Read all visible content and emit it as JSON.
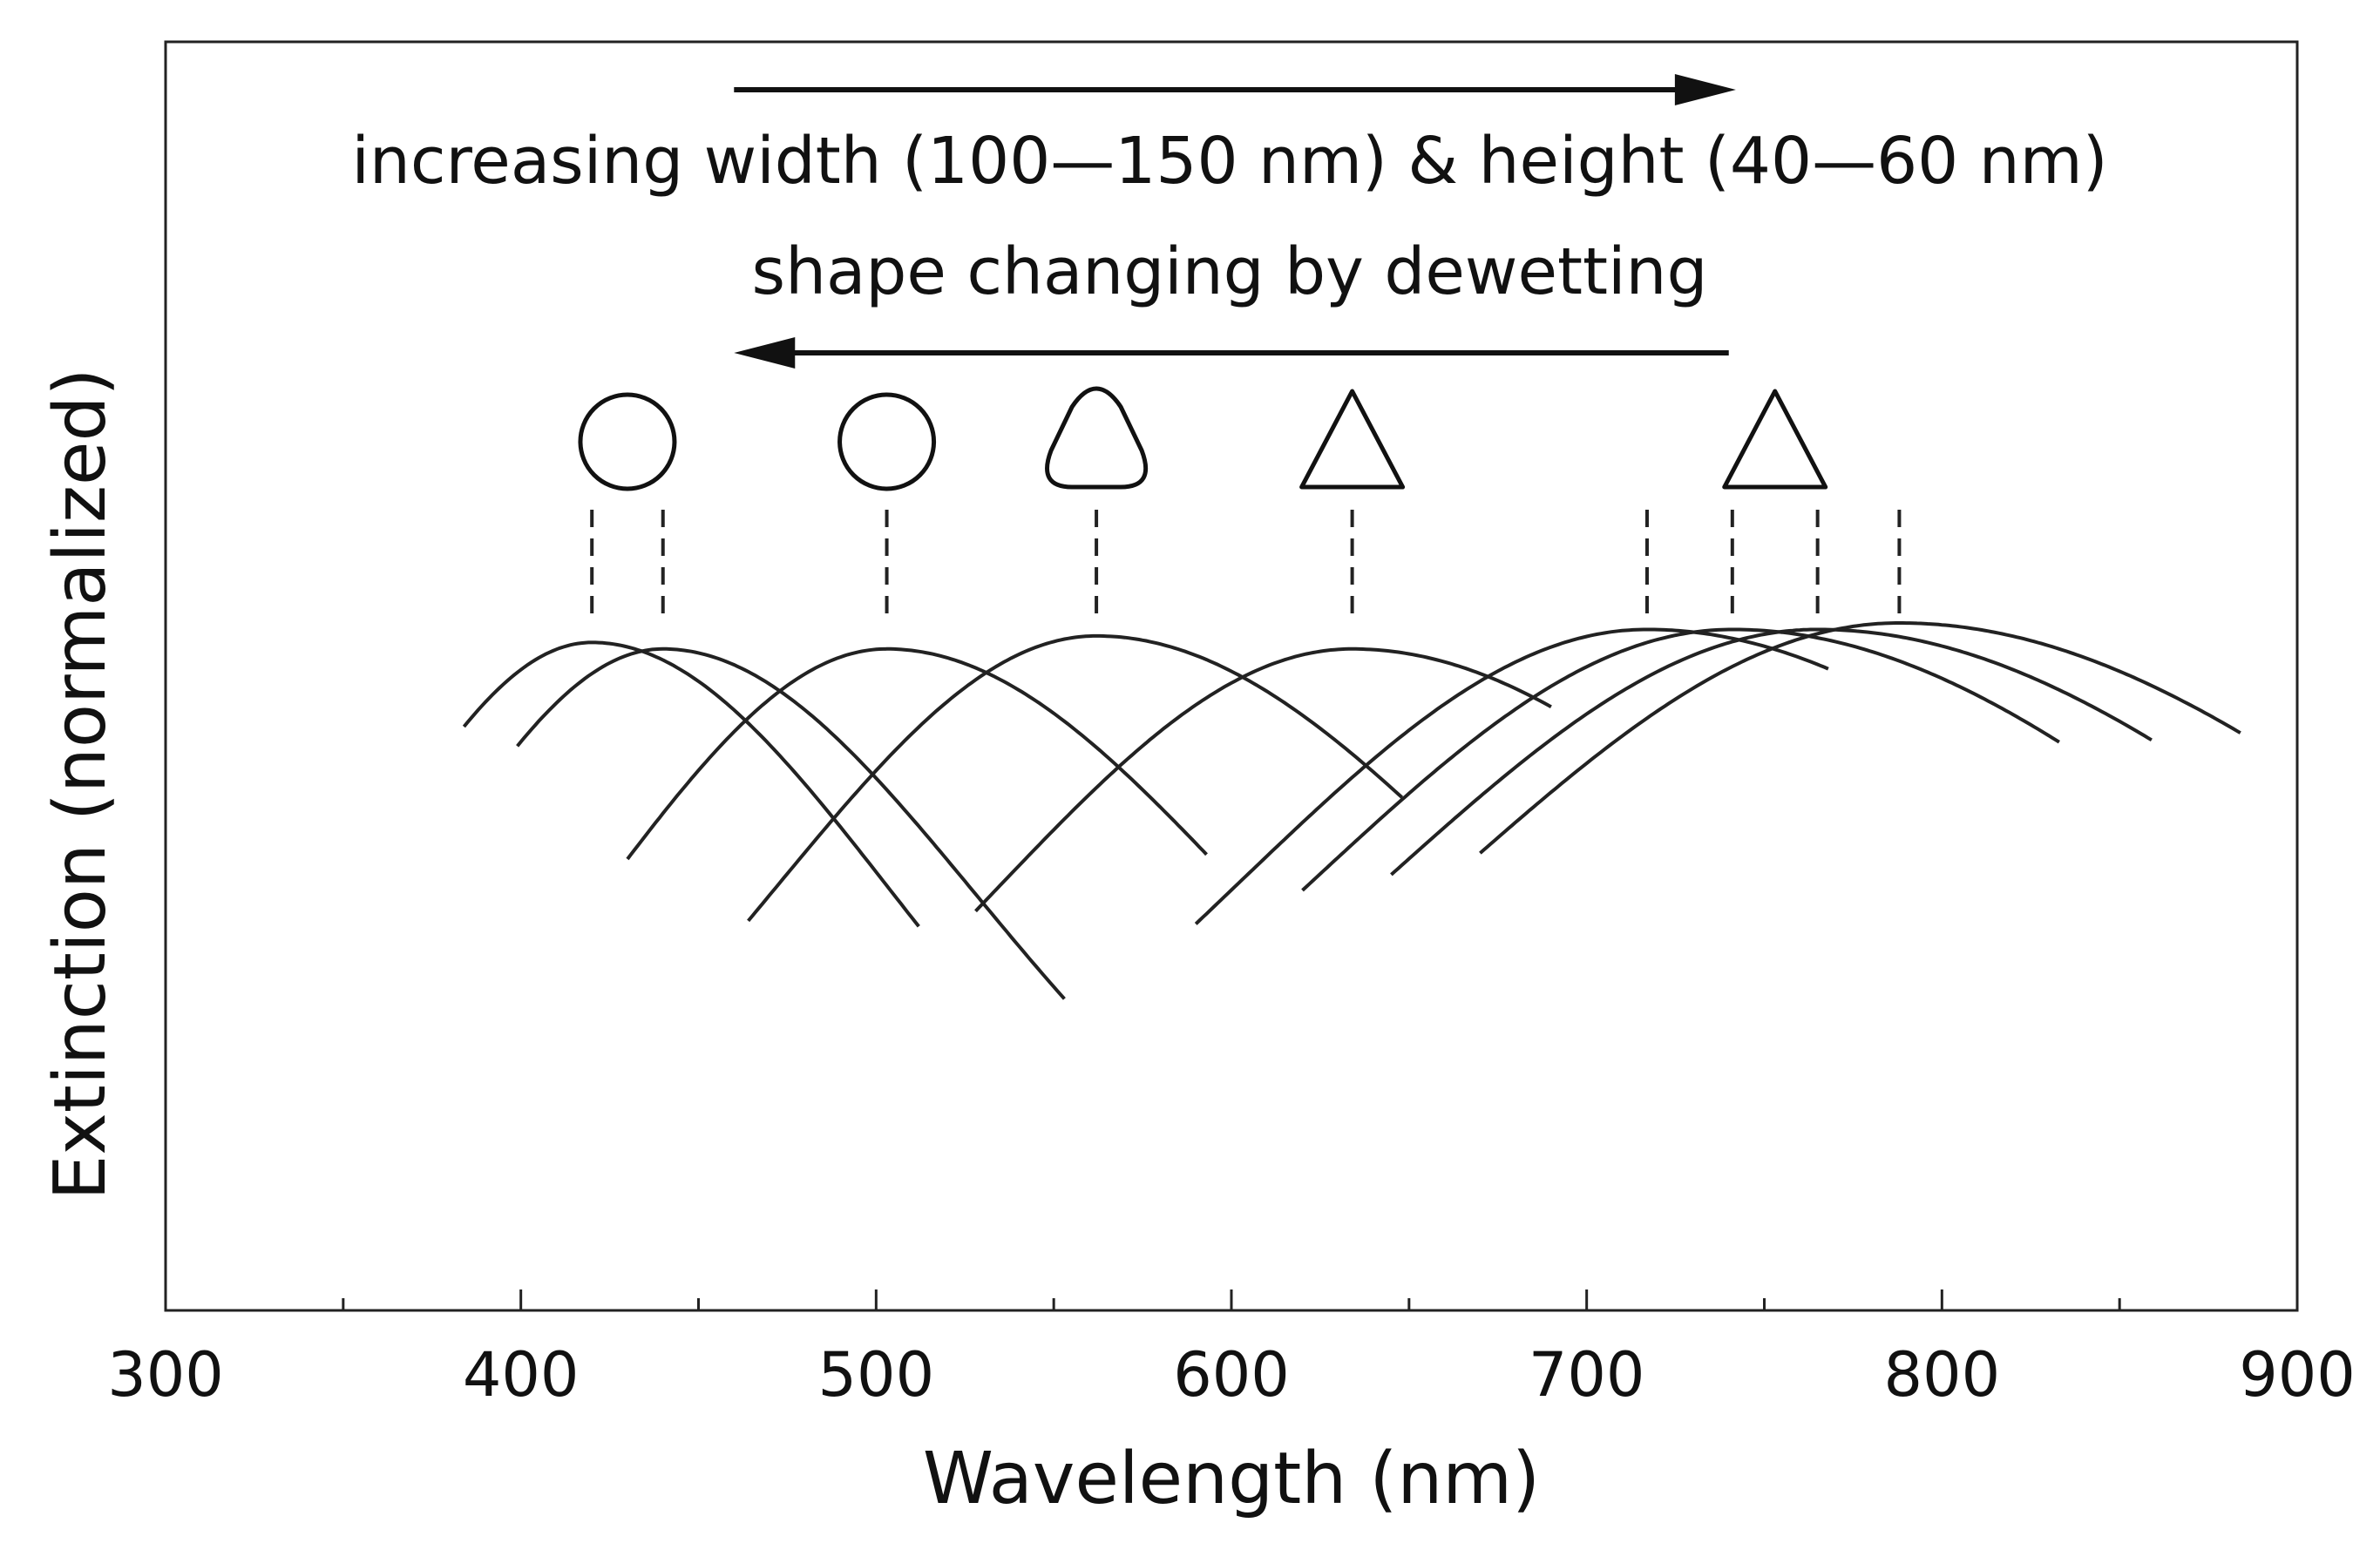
{
  "chart_data": {
    "type": "line",
    "title": "",
    "xlabel": "Wavelength (nm)",
    "ylabel": "Extinction (normalized)",
    "xlim": [
      300,
      900
    ],
    "ylim": [
      0,
      1.05
    ],
    "x_major_ticks": [
      300,
      400,
      500,
      600,
      700,
      800,
      900
    ],
    "x_minor_ticks": [
      350,
      450,
      550,
      650,
      750,
      850
    ],
    "y_ticks_shown": false,
    "grid": false,
    "series": [
      {
        "name": "peak 420 nm",
        "peak_nm": 420,
        "peak_value": 0.97,
        "range_nm": [
          384,
          512
        ],
        "shape": "circle"
      },
      {
        "name": "peak 440 nm",
        "peak_nm": 440,
        "peak_value": 0.96,
        "range_nm": [
          399,
          553
        ],
        "shape": "circle"
      },
      {
        "name": "peak 503 nm",
        "peak_nm": 503,
        "peak_value": 0.96,
        "range_nm": [
          430,
          593
        ],
        "shape": "circle"
      },
      {
        "name": "peak 562 nm",
        "peak_nm": 562,
        "peak_value": 0.98,
        "range_nm": [
          464,
          648
        ],
        "shape": "rounded-triangle"
      },
      {
        "name": "peak 634 nm",
        "peak_nm": 634,
        "peak_value": 0.96,
        "range_nm": [
          528,
          690
        ],
        "shape": "triangle"
      },
      {
        "name": "peak 717 nm",
        "peak_nm": 717,
        "peak_value": 0.99,
        "range_nm": [
          590,
          768
        ],
        "shape": "triangle"
      },
      {
        "name": "peak 741 nm",
        "peak_nm": 741,
        "peak_value": 0.99,
        "range_nm": [
          620,
          833
        ],
        "shape": "triangle"
      },
      {
        "name": "peak 765 nm",
        "peak_nm": 765,
        "peak_value": 0.99,
        "range_nm": [
          645,
          859
        ],
        "shape": "triangle"
      },
      {
        "name": "peak 788 nm",
        "peak_nm": 788,
        "peak_value": 1.0,
        "range_nm": [
          670,
          884
        ],
        "shape": "triangle"
      }
    ],
    "peak_markers_nm": [
      420,
      440,
      503,
      562,
      634,
      717,
      741,
      765,
      788
    ],
    "shape_icons": [
      {
        "type": "circle",
        "x_nm": 430
      },
      {
        "type": "circle",
        "x_nm": 503
      },
      {
        "type": "rounded-triangle",
        "x_nm": 562
      },
      {
        "type": "triangle",
        "x_nm": 634
      },
      {
        "type": "triangle",
        "x_nm": 753
      }
    ],
    "annotations": {
      "top_text": "increasing width (100—150 nm) & height (40—60 nm)",
      "bottom_text": "shape changing by dewetting",
      "top_arrow": {
        "direction": "right",
        "from_nm": 460,
        "to_nm": 742
      },
      "bottom_arrow": {
        "direction": "left",
        "from_nm": 740,
        "to_nm": 460
      }
    }
  }
}
